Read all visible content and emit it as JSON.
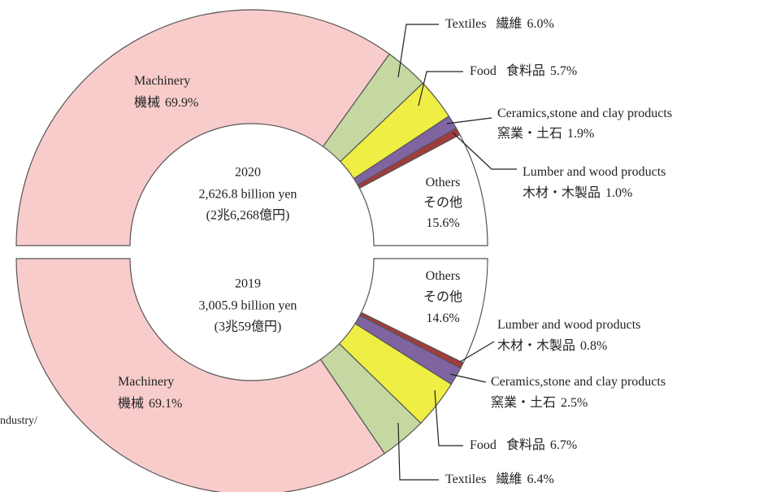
{
  "cropped_text": "ndustry/",
  "chart_data": [
    {
      "type": "donut-half",
      "title": "2020",
      "subtitle": "2,626.8 billion yen",
      "note": "(2兆6,268億円)",
      "categories": [
        "Machinery",
        "Textiles",
        "Food",
        "Ceramics,stone and clay products",
        "Lumber and wood products",
        "Others"
      ],
      "categories_local": [
        "機械",
        "繊維",
        "食料品",
        "窯業・土石",
        "木材・木製品",
        "その他"
      ],
      "values": [
        69.9,
        6.0,
        5.7,
        1.9,
        1.0,
        15.6
      ],
      "value_labels": [
        "69.9%",
        "6.0%",
        "5.7%",
        "1.9%",
        "1.0%",
        "15.6%"
      ],
      "colors": [
        "#f9cccc",
        "#c6d8a2",
        "#eeee44",
        "#8064a2",
        "#a33b3b",
        "#ffffff"
      ]
    },
    {
      "type": "donut-half",
      "title": "2019",
      "subtitle": "3,005.9 billion yen",
      "note": "(3兆59億円)",
      "categories": [
        "Others",
        "Lumber and wood products",
        "Ceramics,stone and clay products",
        "Food",
        "Textiles",
        "Machinery"
      ],
      "categories_local": [
        "その他",
        "木材・木製品",
        "窯業・土石",
        "食料品",
        "繊維",
        "機械"
      ],
      "values": [
        14.6,
        0.8,
        2.5,
        6.7,
        6.4,
        69.1
      ],
      "value_labels": [
        "14.6%",
        "0.8%",
        "2.5%",
        "6.7%",
        "6.4%",
        "69.1%"
      ],
      "colors": [
        "#ffffff",
        "#a33b3b",
        "#8064a2",
        "#eeee44",
        "#c6d8a2",
        "#f9cccc"
      ]
    }
  ]
}
